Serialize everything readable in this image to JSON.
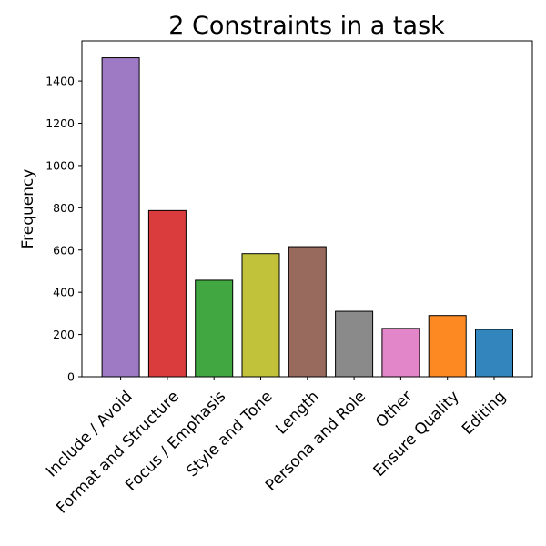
{
  "chart_data": {
    "type": "bar",
    "title": "2 Constraints in a task",
    "xlabel": "",
    "ylabel": "Frequency",
    "ylim": [
      0,
      1590
    ],
    "yticks": [
      0,
      200,
      400,
      600,
      800,
      1000,
      1200,
      1400
    ],
    "grid": false,
    "categories": [
      "Include / Avoid",
      "Format and Structure",
      "Focus / Emphasis",
      "Style and Tone",
      "Length",
      "Persona and Role",
      "Other",
      "Ensure Quality",
      "Editing"
    ],
    "values": [
      1510,
      787,
      457,
      583,
      616,
      310,
      229,
      290,
      224
    ],
    "colors": [
      "#9e79c4",
      "#da3c3e",
      "#40a741",
      "#c1c23a",
      "#986a5d",
      "#8a8a8a",
      "#e386c9",
      "#fd8923",
      "#3386bd"
    ]
  }
}
